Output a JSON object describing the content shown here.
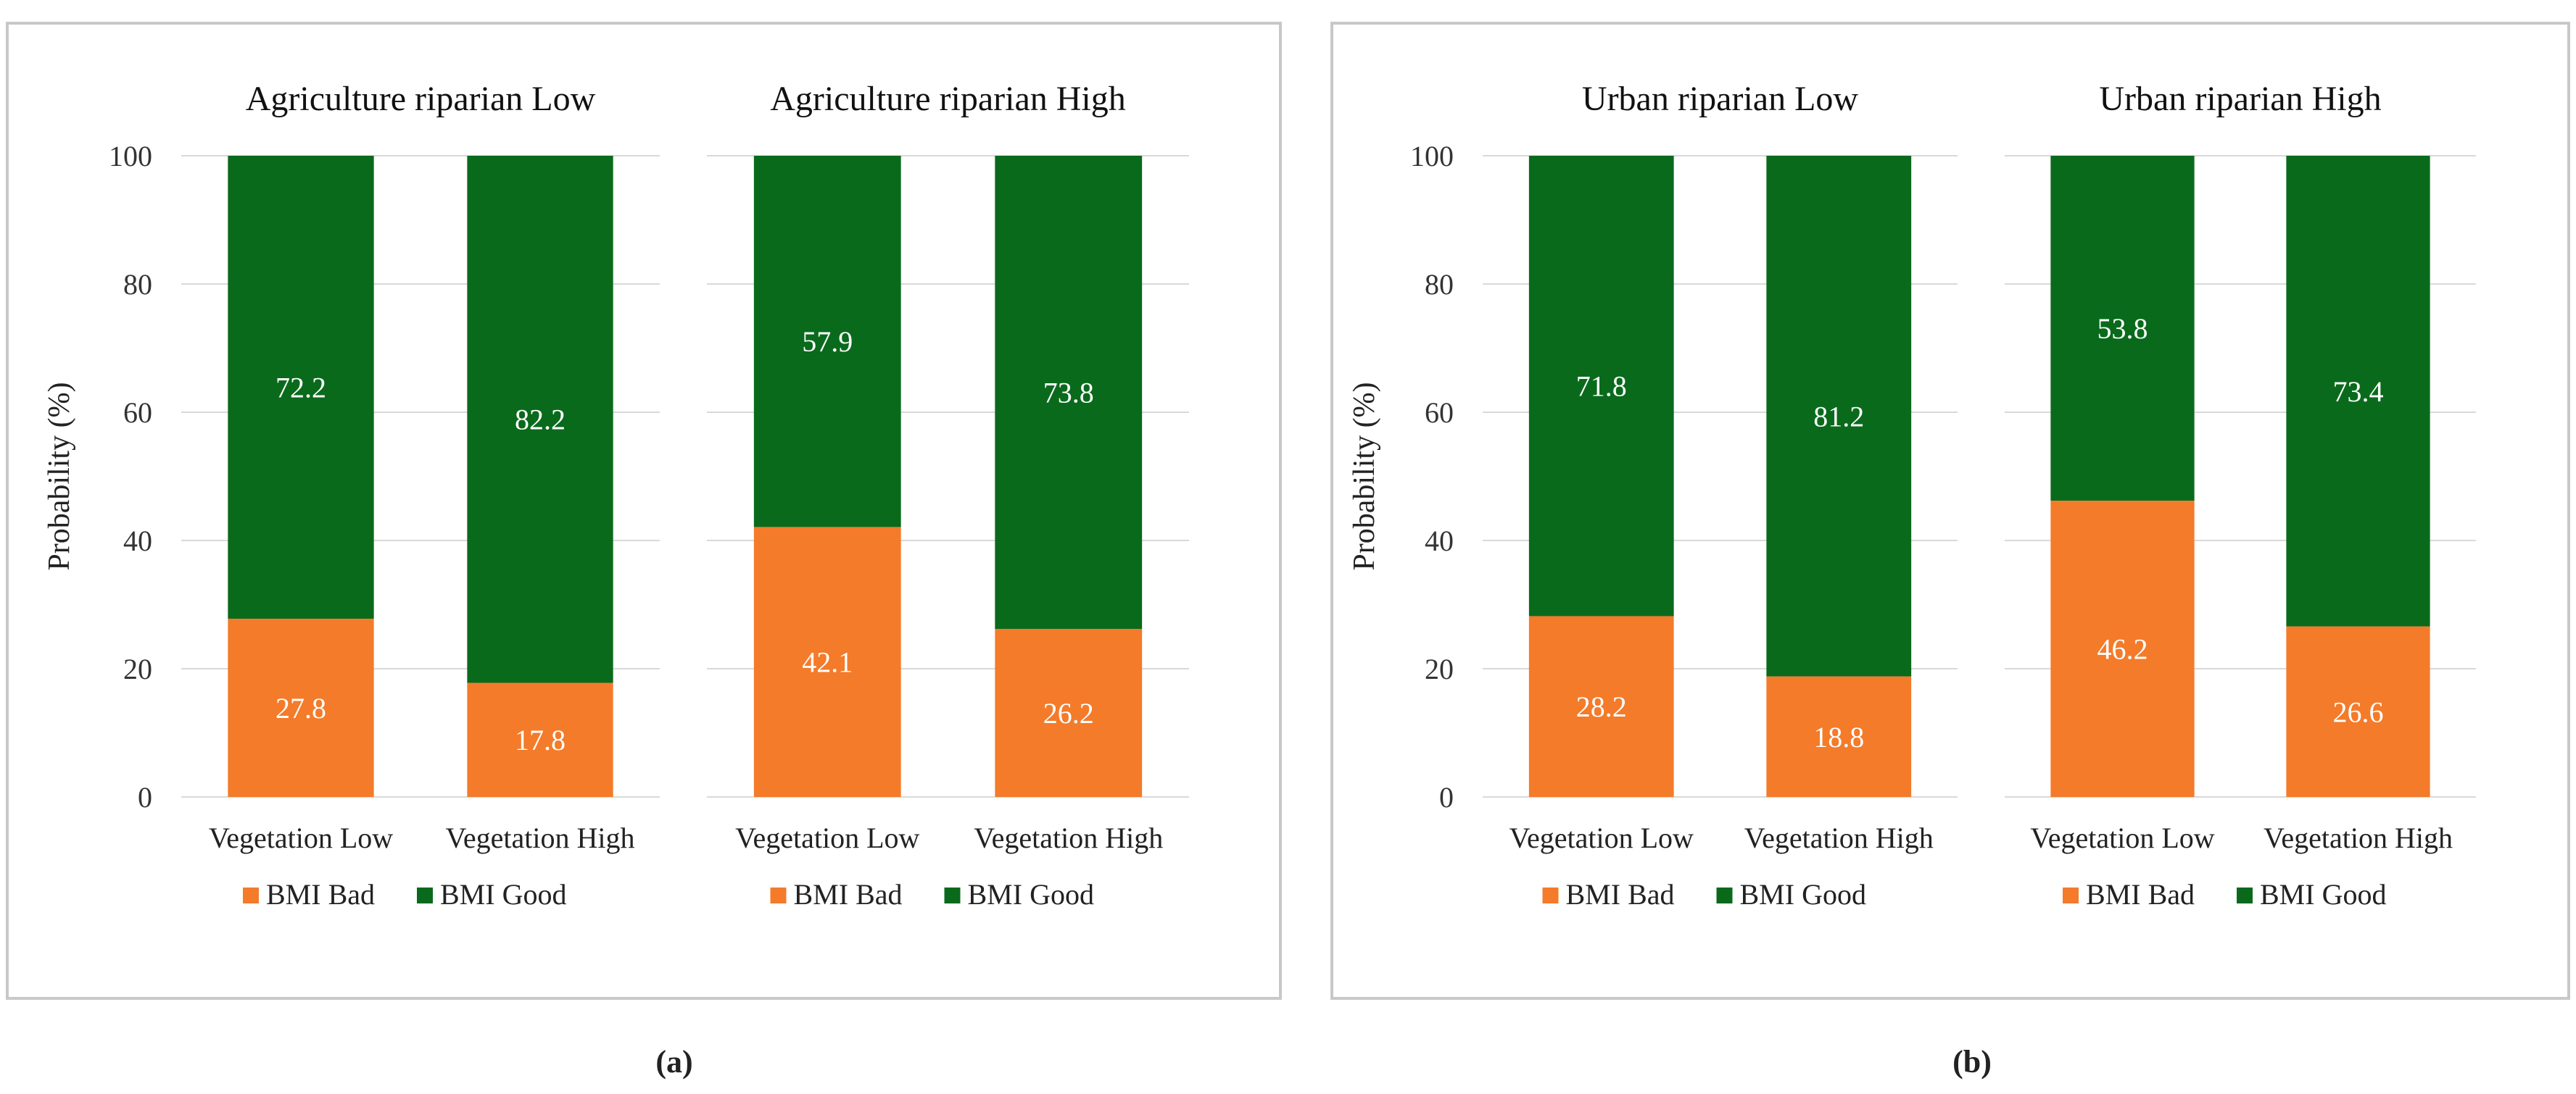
{
  "colors": {
    "bad": "#f47b2a",
    "good": "#0a6a1c",
    "grid": "#d9d9d9"
  },
  "panel_labels": [
    "(a)",
    "(b)"
  ],
  "chart_data": [
    {
      "type": "bar",
      "stacked": true,
      "title": "Agriculture riparian Low",
      "categories": [
        "Vegetation Low",
        "Vegetation High"
      ],
      "series": [
        {
          "name": "BMI Bad",
          "values": [
            27.8,
            17.8
          ]
        },
        {
          "name": "BMI Good",
          "values": [
            72.2,
            82.2
          ]
        }
      ],
      "ylabel": "Probability (%)",
      "ylim": [
        0,
        100
      ],
      "yticks": [
        0,
        20,
        40,
        60,
        80,
        100
      ],
      "legend": "bottom"
    },
    {
      "type": "bar",
      "stacked": true,
      "title": "Agriculture riparian High",
      "categories": [
        "Vegetation Low",
        "Vegetation High"
      ],
      "series": [
        {
          "name": "BMI Bad",
          "values": [
            42.1,
            26.2
          ]
        },
        {
          "name": "BMI Good",
          "values": [
            57.9,
            73.8
          ]
        }
      ],
      "ylim": [
        0,
        100
      ],
      "legend": "bottom"
    },
    {
      "type": "bar",
      "stacked": true,
      "title": "Urban riparian Low",
      "categories": [
        "Vegetation Low",
        "Vegetation High"
      ],
      "series": [
        {
          "name": "BMI Bad",
          "values": [
            28.2,
            18.8
          ]
        },
        {
          "name": "BMI Good",
          "values": [
            71.8,
            81.2
          ]
        }
      ],
      "ylabel": "Probability (%)",
      "ylim": [
        0,
        100
      ],
      "yticks": [
        0,
        20,
        40,
        60,
        80,
        100
      ],
      "legend": "bottom"
    },
    {
      "type": "bar",
      "stacked": true,
      "title": "Urban riparian High",
      "categories": [
        "Vegetation Low",
        "Vegetation High"
      ],
      "series": [
        {
          "name": "BMI Bad",
          "values": [
            46.2,
            26.6
          ]
        },
        {
          "name": "BMI Good",
          "values": [
            53.8,
            73.4
          ]
        }
      ],
      "ylim": [
        0,
        100
      ],
      "legend": "bottom"
    }
  ]
}
